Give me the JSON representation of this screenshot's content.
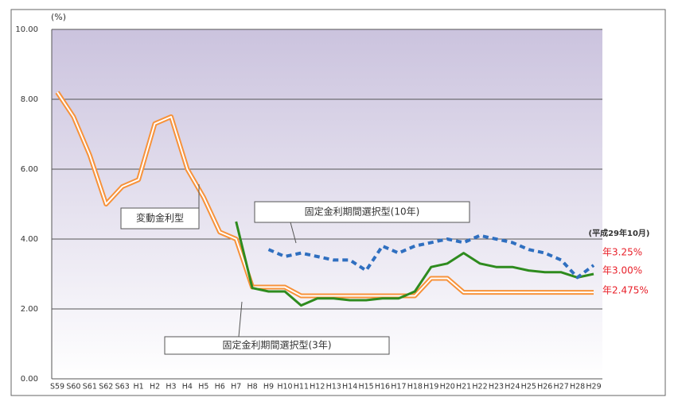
{
  "chart_data": {
    "type": "line",
    "y_unit": "(%)",
    "note": "(平成29年10月)",
    "categories": [
      "S59",
      "S60",
      "S61",
      "S62",
      "S63",
      "H1",
      "H2",
      "H3",
      "H4",
      "H5",
      "H6",
      "H7",
      "H8",
      "H9",
      "H10",
      "H11",
      "H12",
      "H13",
      "H14",
      "H15",
      "H16",
      "H17",
      "H18",
      "H19",
      "H20",
      "H21",
      "H22",
      "H23",
      "H24",
      "H25",
      "H26",
      "H27",
      "H28",
      "H29"
    ],
    "ylim": [
      0,
      10
    ],
    "yticks": [
      {
        "value": 0,
        "label": "0.00"
      },
      {
        "value": 2,
        "label": "2.00"
      },
      {
        "value": 4,
        "label": "4.00"
      },
      {
        "value": 6,
        "label": "6.00"
      },
      {
        "value": 8,
        "label": "8.00"
      },
      {
        "value": 10,
        "label": "10.00"
      }
    ],
    "grid": true,
    "series": [
      {
        "name": "変動金利型",
        "color": "#f7923a",
        "style": "double",
        "values": [
          8.2,
          7.5,
          6.4,
          5.0,
          5.5,
          5.7,
          7.3,
          7.5,
          6.0,
          5.2,
          4.2,
          4.0,
          2.625,
          2.625,
          2.625,
          2.375,
          2.375,
          2.375,
          2.375,
          2.375,
          2.375,
          2.375,
          2.375,
          2.875,
          2.875,
          2.475,
          2.475,
          2.475,
          2.475,
          2.475,
          2.475,
          2.475,
          2.475,
          2.475
        ],
        "value_labels": [
          null,
          null,
          null,
          null,
          null,
          null,
          null,
          null,
          null,
          null,
          null,
          null,
          null,
          null,
          null,
          null,
          null,
          null,
          null,
          null,
          null,
          null,
          null,
          null,
          null,
          null,
          null,
          null,
          null,
          null,
          null,
          null,
          null,
          "年2.475%"
        ]
      },
      {
        "name": "固定金利期間選択型(3年)",
        "color": "#2e8b1e",
        "style": "solid",
        "values": [
          null,
          null,
          null,
          null,
          null,
          null,
          null,
          null,
          null,
          null,
          null,
          4.5,
          2.6,
          2.5,
          2.5,
          2.1,
          2.3,
          2.3,
          2.25,
          2.25,
          2.3,
          2.3,
          2.5,
          3.2,
          3.3,
          3.6,
          3.3,
          3.2,
          3.2,
          3.1,
          3.05,
          3.05,
          2.9,
          3.0
        ],
        "value_labels": [
          null,
          null,
          null,
          null,
          null,
          null,
          null,
          null,
          null,
          null,
          null,
          null,
          null,
          null,
          null,
          null,
          null,
          null,
          null,
          null,
          null,
          null,
          null,
          null,
          null,
          null,
          null,
          null,
          null,
          null,
          null,
          null,
          null,
          "年3.00%"
        ]
      },
      {
        "name": "固定金利期間選択型(10年)",
        "color": "#2f6fc0",
        "style": "dashed",
        "values": [
          null,
          null,
          null,
          null,
          null,
          null,
          null,
          null,
          null,
          null,
          null,
          null,
          null,
          3.7,
          3.5,
          3.6,
          3.5,
          3.4,
          3.4,
          3.1,
          3.8,
          3.6,
          3.8,
          3.9,
          4.0,
          3.9,
          4.1,
          4.0,
          3.9,
          3.7,
          3.6,
          3.4,
          2.9,
          3.25
        ],
        "value_labels": [
          null,
          null,
          null,
          null,
          null,
          null,
          null,
          null,
          null,
          null,
          null,
          null,
          null,
          null,
          null,
          null,
          null,
          null,
          null,
          null,
          null,
          null,
          null,
          null,
          null,
          null,
          null,
          null,
          null,
          null,
          null,
          null,
          null,
          "年3.25%"
        ]
      }
    ]
  }
}
